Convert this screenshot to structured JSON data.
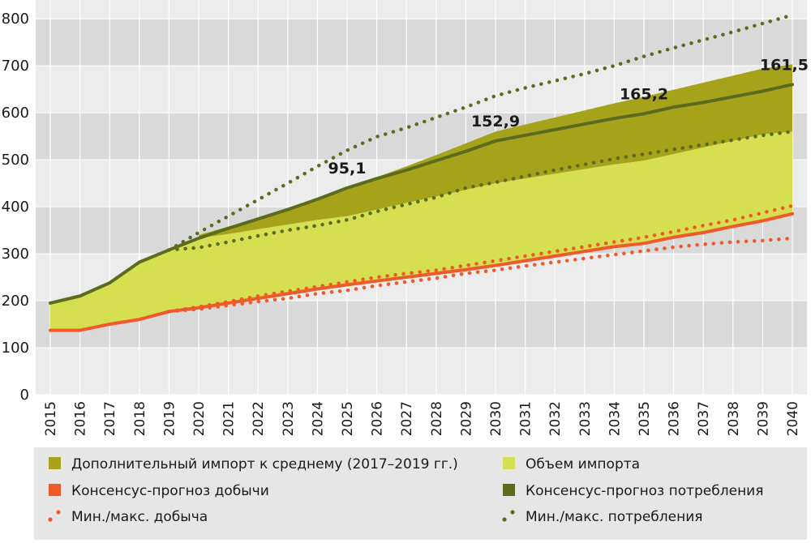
{
  "chart_data": {
    "type": "area",
    "x": [
      2015,
      2016,
      2017,
      2018,
      2019,
      2020,
      2021,
      2022,
      2023,
      2024,
      2025,
      2026,
      2027,
      2028,
      2029,
      2030,
      2031,
      2032,
      2033,
      2034,
      2035,
      2036,
      2037,
      2038,
      2039,
      2040
    ],
    "x_labels": [
      "2015",
      "2016",
      "2017",
      "2018",
      "2019",
      "2020",
      "2021",
      "2022",
      "2023",
      "2024",
      "2025",
      "2026",
      "2027",
      "2028",
      "2029",
      "2030",
      "2031",
      "2032",
      "2033",
      "2034",
      "2035",
      "2036",
      "2037",
      "2038",
      "2039",
      "2040"
    ],
    "ylim": [
      0,
      840
    ],
    "y_ticks": [
      0,
      100,
      200,
      300,
      400,
      500,
      600,
      700,
      800
    ],
    "grid": "horizontal bands",
    "legend_position": "bottom",
    "series": [
      {
        "name": "Дополнительный импорт к среднему (2017–2019 гг.)",
        "kind": "area-band",
        "color": "#a6a31a",
        "x": [
          2020,
          2021,
          2022,
          2023,
          2024,
          2025,
          2026,
          2027,
          2028,
          2029,
          2030,
          2031,
          2032,
          2033,
          2034,
          2035,
          2036,
          2037,
          2038,
          2039,
          2040
        ],
        "lower": [
          333,
          342,
          352,
          362,
          372,
          380,
          394,
          408,
          422,
          436,
          450,
          460,
          470,
          480,
          490,
          498,
          512,
          526,
          540,
          554,
          560
        ],
        "upper": [
          340,
          358,
          376,
          395,
          418,
          440,
          463,
          486,
          510,
          535,
          560,
          575,
          590,
          605,
          620,
          634,
          649,
          664,
          679,
          694,
          703
        ]
      },
      {
        "name": "Объем импорта",
        "kind": "area-band",
        "color": "#d6df4f",
        "x": [
          2015,
          2016,
          2017,
          2018,
          2019,
          2020,
          2021,
          2022,
          2023,
          2024,
          2025,
          2026,
          2027,
          2028,
          2029,
          2030,
          2031,
          2032,
          2033,
          2034,
          2035,
          2036,
          2037,
          2038,
          2039,
          2040
        ],
        "lower": [
          137,
          137,
          150,
          160,
          177,
          185,
          195,
          205,
          215,
          225,
          234,
          242,
          250,
          258,
          266,
          275,
          285,
          295,
          305,
          315,
          322,
          335,
          345,
          358,
          370,
          385
        ],
        "upper": [
          195,
          210,
          238,
          282,
          308,
          333,
          342,
          352,
          362,
          372,
          380,
          394,
          408,
          422,
          436,
          450,
          460,
          470,
          480,
          490,
          498,
          512,
          526,
          540,
          554,
          560
        ]
      },
      {
        "name": "Консенсус-прогноз добычи",
        "kind": "line",
        "color": "#ee5a2a",
        "x": [
          2015,
          2016,
          2017,
          2018,
          2019,
          2020,
          2021,
          2022,
          2023,
          2024,
          2025,
          2026,
          2027,
          2028,
          2029,
          2030,
          2031,
          2032,
          2033,
          2034,
          2035,
          2036,
          2037,
          2038,
          2039,
          2040
        ],
        "values": [
          137,
          137,
          150,
          160,
          177,
          185,
          195,
          205,
          215,
          225,
          234,
          242,
          250,
          258,
          266,
          275,
          285,
          295,
          305,
          315,
          322,
          335,
          345,
          358,
          370,
          385
        ]
      },
      {
        "name": "Консенсус-прогноз потребления",
        "kind": "line",
        "color": "#5d6b1e",
        "x": [
          2015,
          2016,
          2017,
          2018,
          2019,
          2020,
          2021,
          2022,
          2023,
          2024,
          2025,
          2026,
          2027,
          2028,
          2029,
          2030,
          2031,
          2032,
          2033,
          2034,
          2035,
          2036,
          2037,
          2038,
          2039,
          2040
        ],
        "values": [
          195,
          210,
          238,
          282,
          308,
          333,
          354,
          374,
          394,
          416,
          440,
          460,
          478,
          498,
          518,
          540,
          552,
          564,
          576,
          588,
          598,
          612,
          622,
          634,
          646,
          660
        ]
      },
      {
        "name": "Мин./макс. добыча",
        "kind": "dotted-pair",
        "color": "#ee5a2a",
        "x": [
          2019,
          2020,
          2021,
          2022,
          2023,
          2024,
          2025,
          2026,
          2027,
          2028,
          2029,
          2030,
          2031,
          2032,
          2033,
          2034,
          2035,
          2036,
          2037,
          2038,
          2039,
          2040
        ],
        "min": [
          177,
          182,
          190,
          198,
          205,
          215,
          222,
          232,
          240,
          248,
          258,
          265,
          274,
          282,
          290,
          298,
          306,
          314,
          320,
          325,
          328,
          333
        ],
        "max": [
          177,
          187,
          198,
          210,
          220,
          230,
          240,
          250,
          258,
          265,
          275,
          285,
          295,
          305,
          315,
          325,
          335,
          347,
          360,
          372,
          387,
          402
        ]
      },
      {
        "name": "Мин./макс. потребления",
        "kind": "dotted-pair",
        "color": "#5d6b1e",
        "x": [
          2019,
          2020,
          2021,
          2022,
          2023,
          2024,
          2025,
          2026,
          2027,
          2028,
          2029,
          2030,
          2031,
          2032,
          2033,
          2034,
          2035,
          2036,
          2037,
          2038,
          2039,
          2040
        ],
        "min": [
          308,
          313,
          325,
          338,
          350,
          360,
          372,
          390,
          405,
          420,
          440,
          452,
          465,
          478,
          490,
          502,
          512,
          522,
          532,
          542,
          552,
          560
        ],
        "max": [
          308,
          345,
          380,
          415,
          450,
          486,
          520,
          549,
          568,
          590,
          612,
          636,
          653,
          668,
          683,
          700,
          720,
          738,
          755,
          772,
          790,
          808
        ]
      }
    ],
    "annotations": [
      {
        "x": 2025,
        "y": 440,
        "label": "95,1"
      },
      {
        "x": 2030,
        "y": 540,
        "label": "152,9"
      },
      {
        "x": 2035,
        "y": 598,
        "label": "165,2"
      },
      {
        "x": 2040,
        "y": 660,
        "label": "161,5"
      }
    ]
  },
  "legend": {
    "items": [
      {
        "label": "Дополнительный импорт к среднему (2017–2019 гг.)",
        "marker": "square",
        "color": "#a6a31a"
      },
      {
        "label": "Объем импорта",
        "marker": "square",
        "color": "#d6df4f"
      },
      {
        "label": "Консенсус-прогноз добычи",
        "marker": "square",
        "color": "#ee5a2a"
      },
      {
        "label": "Консенсус-прогноз потребления",
        "marker": "square",
        "color": "#5d6b1e"
      },
      {
        "label": "Мин./макс. добыча",
        "marker": "dots",
        "color": "#ee5a2a"
      },
      {
        "label": "Мин./макс. потребления",
        "marker": "dots",
        "color": "#5d6b1e"
      }
    ]
  }
}
